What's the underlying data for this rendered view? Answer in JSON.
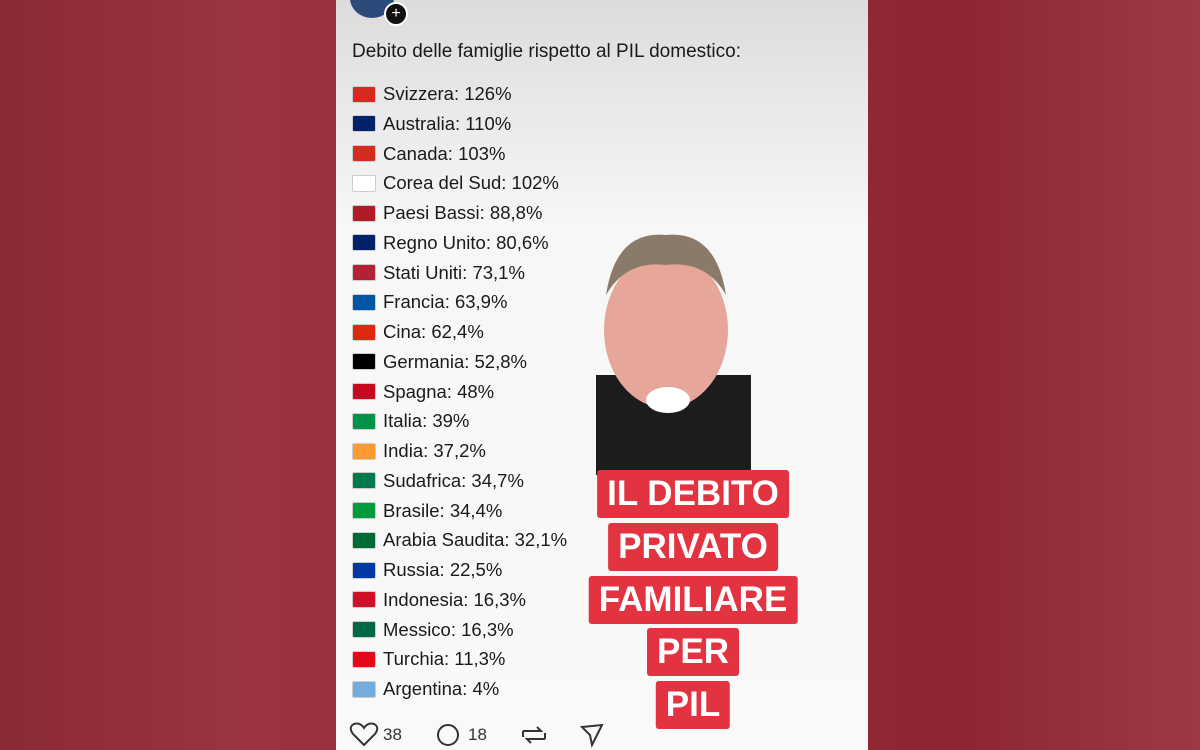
{
  "post": {
    "text": "Debito delle famiglie rispetto al PIL domestico:",
    "items": [
      "Svizzera: 126%",
      "Australia: 110%",
      "Canada: 103%",
      "Corea del Sud: 102%",
      "Paesi Bassi: 88,8%",
      "Regno Unito: 80,6%",
      "Stati Uniti: 73,1%",
      "Francia: 63,9%",
      "Cina: 62,4%",
      "Germania: 52,8%",
      "Spagna: 48%",
      "Italia: 39%",
      "India: 37,2%",
      "Sudafrica: 34,7%",
      "Brasile: 34,4%",
      "Arabia Saudita: 32,1%",
      "Russia: 22,5%",
      "Indonesia: 16,3%",
      "Messico: 16,3%",
      "Turchia: 11,3%",
      "Argentina: 4%"
    ],
    "likes": "38",
    "comments": "18"
  },
  "caption": {
    "lines": [
      "IL DEBITO",
      "PRIVATO",
      "FAMILIARE",
      "PER",
      "PIL"
    ]
  }
}
